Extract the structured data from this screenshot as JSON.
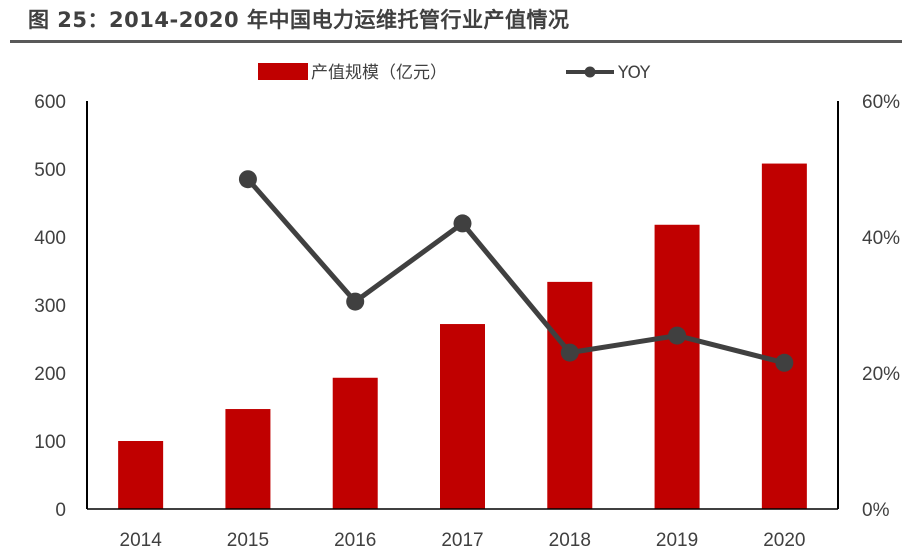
{
  "figure_title": "图 25：2014-2020 年中国电力运维托管行业产值情况",
  "colors": {
    "bar": "#c00000",
    "line": "#404040",
    "axis": "#000000",
    "text": "#404040"
  },
  "chart_data": {
    "type": "bar",
    "categories": [
      "2014",
      "2015",
      "2016",
      "2017",
      "2018",
      "2019",
      "2020"
    ],
    "series": [
      {
        "name": "产值规模（亿元）",
        "type": "bar",
        "axis": "left",
        "values": [
          100,
          147,
          193,
          272,
          334,
          418,
          508
        ]
      },
      {
        "name": "YOY",
        "type": "line",
        "axis": "right",
        "unit": "%",
        "values": [
          null,
          48.5,
          30.5,
          42.0,
          23.0,
          25.5,
          21.5
        ]
      }
    ],
    "left_axis": {
      "min": 0,
      "max": 600,
      "ticks": [
        "0",
        "100",
        "200",
        "300",
        "400",
        "500",
        "600"
      ]
    },
    "right_axis": {
      "min": 0,
      "max": 60,
      "ticks": [
        "0%",
        "20%",
        "40%",
        "60%"
      ]
    },
    "legend_position": "top",
    "grid": false
  }
}
